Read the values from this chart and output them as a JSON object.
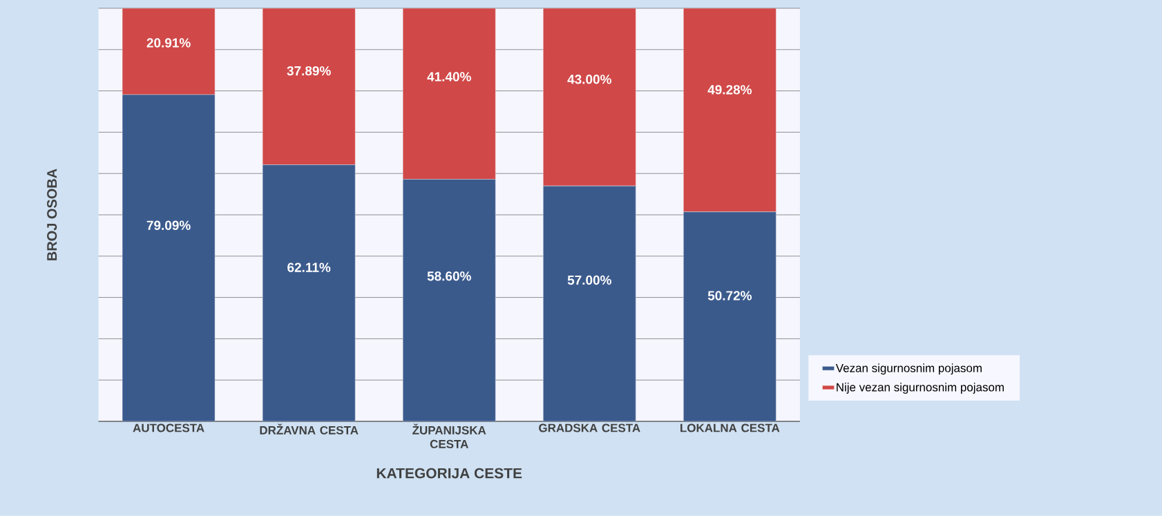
{
  "chart_data": {
    "type": "bar",
    "stacked": true,
    "xlabel": "KATEGORIJA CESTE",
    "ylabel": "BROJ OSOBA",
    "categories": [
      "AUTOCESTA",
      "DRŽAVNA CESTA",
      "ŽUPANIJSKA CESTA",
      "GRADSKA CESTA",
      "LOKALNA CESTA"
    ],
    "series": [
      {
        "name": "Vezan sigurnosnim pojasom",
        "color": "#3b5a8c",
        "values": [
          79.09,
          62.11,
          58.6,
          57.0,
          50.72
        ],
        "value_labels": [
          "79.09%",
          "62.11%",
          "58.60%",
          "57.00%",
          "50.72%"
        ]
      },
      {
        "name": "Nije vezan sigurnosnim pojasom",
        "color": "#d04848",
        "values": [
          20.91,
          37.89,
          41.4,
          43.0,
          49.28
        ],
        "value_labels": [
          "20.91%",
          "37.89%",
          "41.40%",
          "43.00%",
          "49.28%"
        ]
      }
    ],
    "grid": "y",
    "legend": "right"
  }
}
